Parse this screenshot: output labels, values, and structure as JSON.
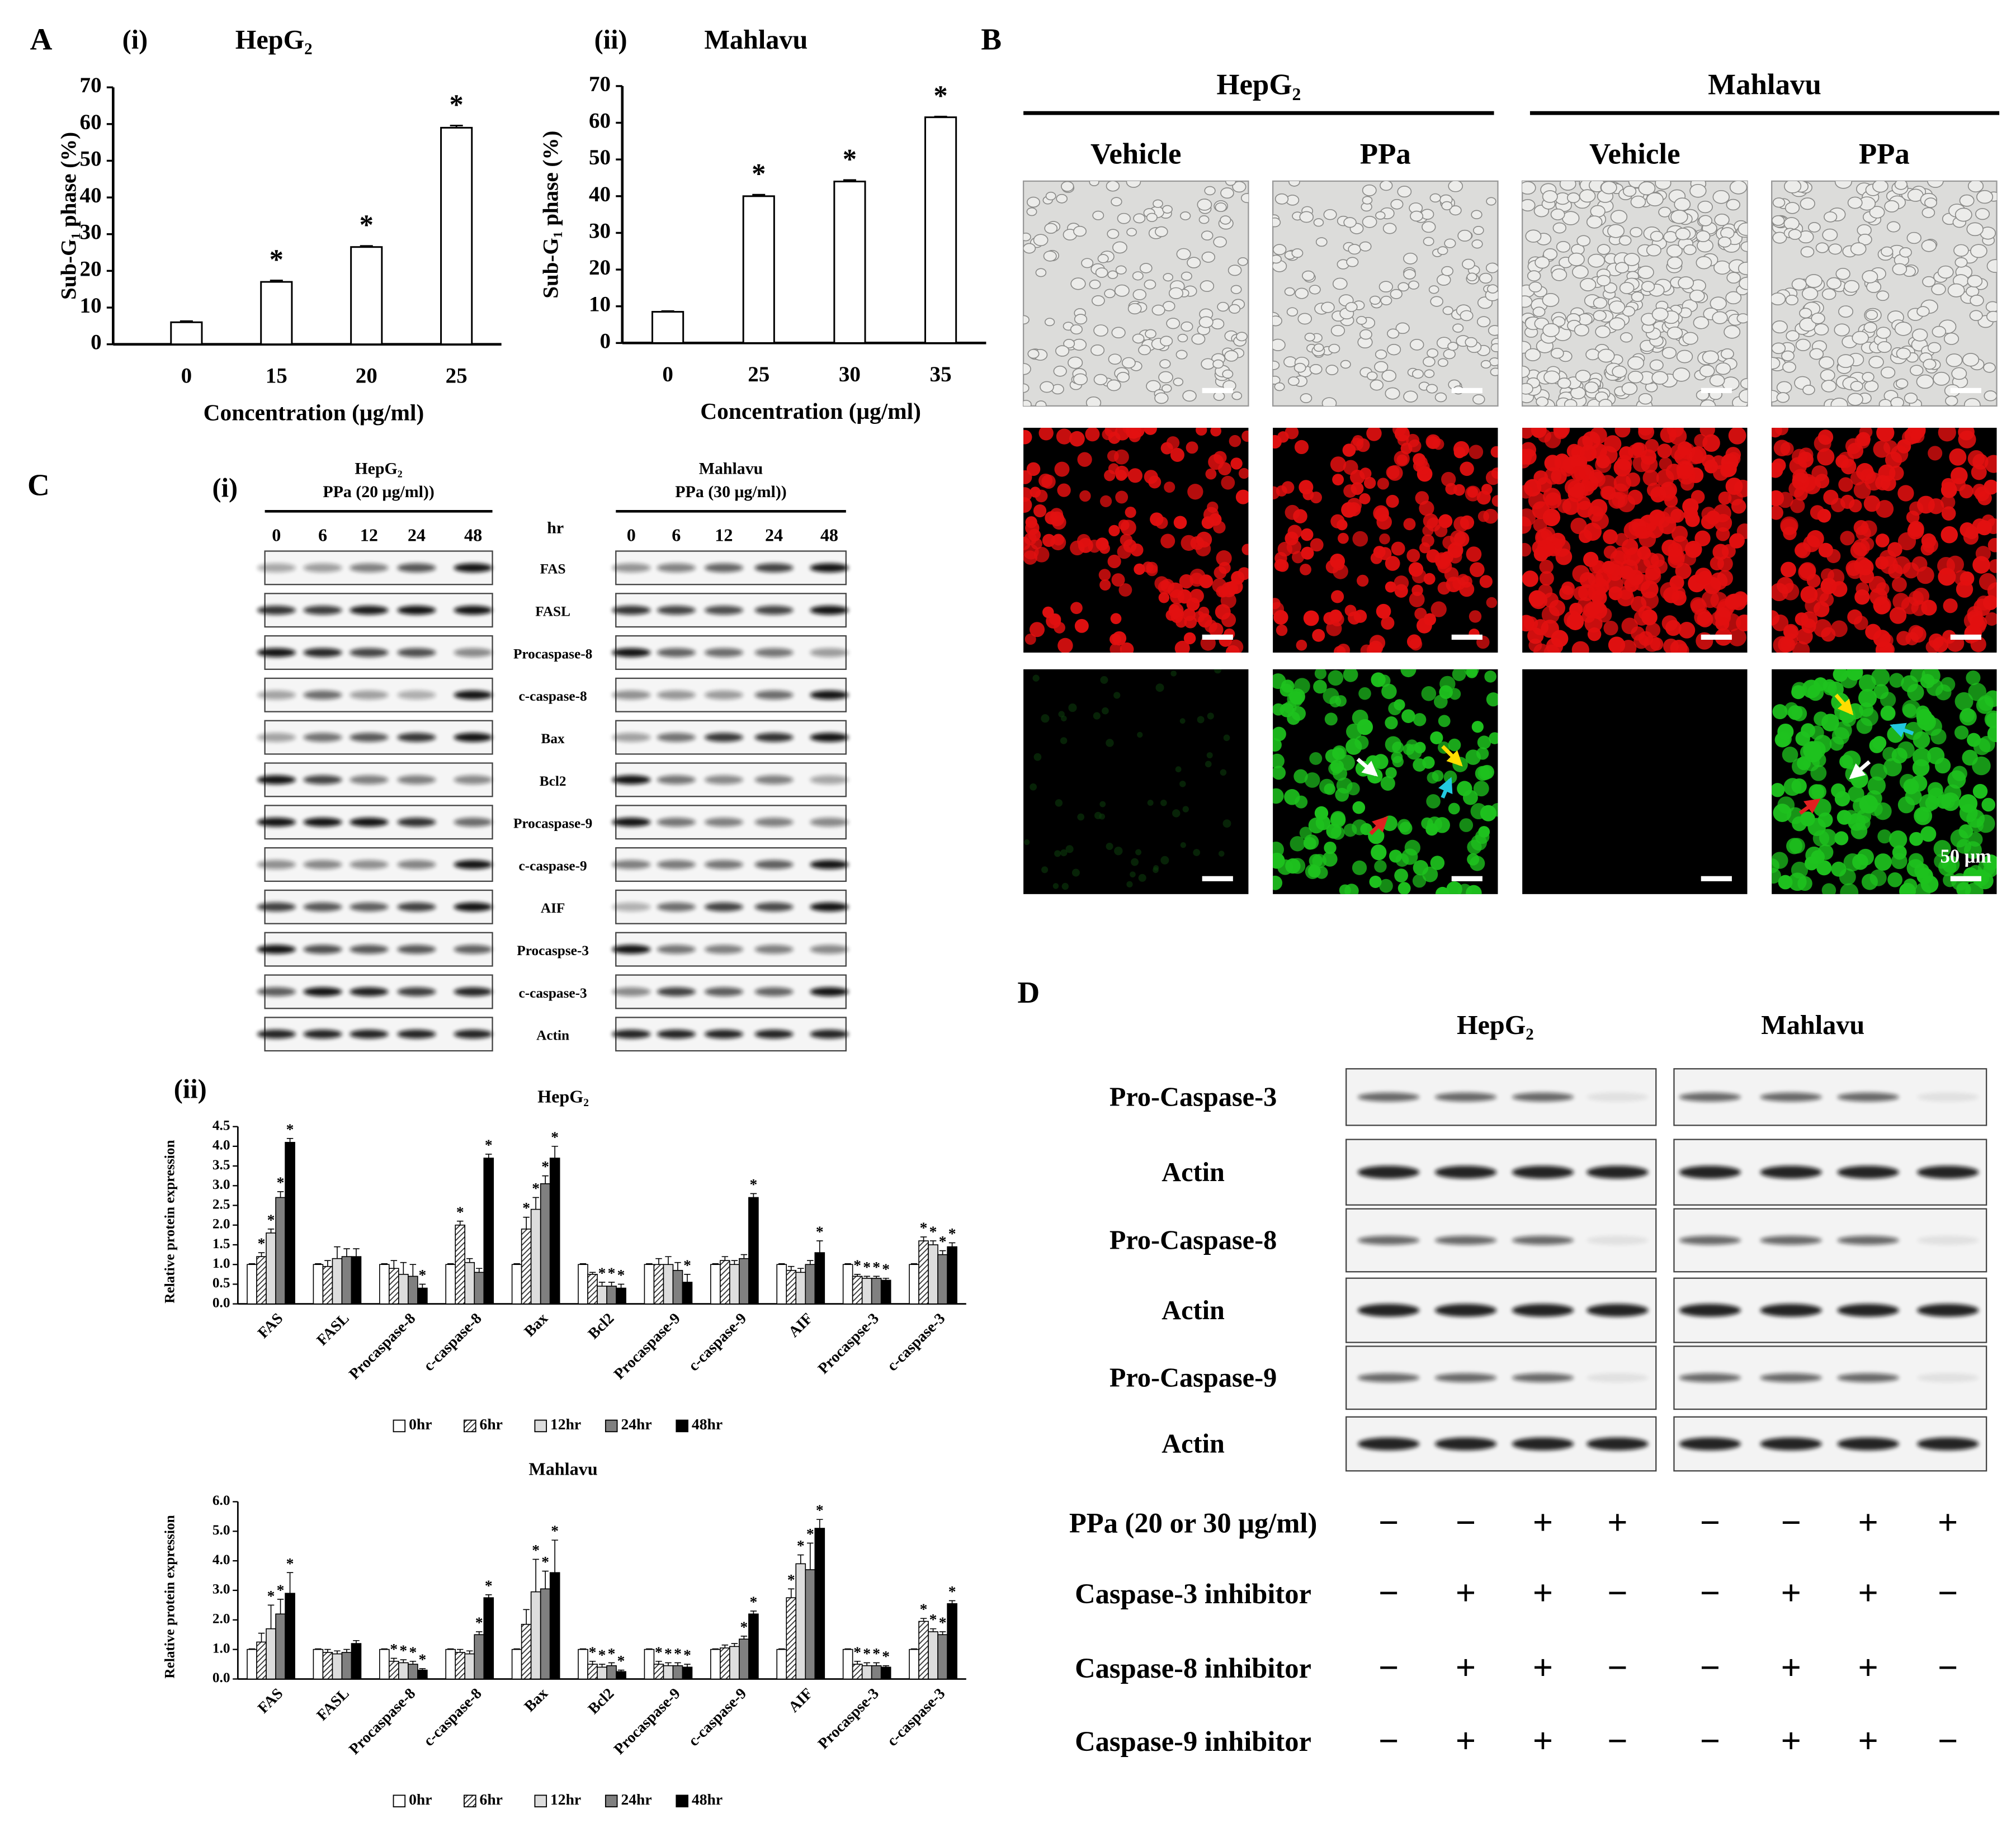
{
  "chart_data": [
    {
      "type": "bar",
      "panel": "A",
      "label": "(i)",
      "title": "HepG₂",
      "categories": [
        "0",
        "15",
        "20",
        "25"
      ],
      "values": [
        6,
        17,
        26.5,
        59
      ],
      "errors": [
        0.3,
        0.4,
        0.3,
        0.6
      ],
      "stars": [
        null,
        "*",
        "*",
        "*"
      ],
      "color": "#ffffff",
      "xlabel": "Concentration (μg/ml)",
      "ylabel": "Sub-G₁ phase (%)",
      "ylim": [
        0,
        70
      ],
      "yticks": [
        0,
        10,
        20,
        30,
        40,
        50,
        60,
        70
      ]
    },
    {
      "type": "bar",
      "label": "(ii)",
      "title": "Mahlavu",
      "categories": [
        "0",
        "25",
        "30",
        "35"
      ],
      "values": [
        8.5,
        40,
        44,
        61.5
      ],
      "errors": [
        0.2,
        0.4,
        0.4,
        0.2
      ],
      "stars": [
        null,
        "*",
        "*",
        "*"
      ],
      "color": "#ffffff",
      "xlabel": "Concentration (μg/ml)",
      "ylabel": "Sub-G₁ phase (%)",
      "ylim": [
        0,
        70
      ],
      "yticks": [
        0,
        10,
        20,
        30,
        40,
        50,
        60,
        70
      ]
    },
    {
      "type": "grouped_bar",
      "label": "(ii)",
      "title": "HepG₂",
      "ylabel": "Relative protein expression",
      "categories": [
        "FAS",
        "FASL",
        "Procaspase-8",
        "c-caspase-8",
        "Bax",
        "Bcl2",
        "Procaspase-9",
        "c-caspase-9",
        "AIF",
        "Procaspse-3",
        "c-caspase-3"
      ],
      "ylim": [
        0,
        4.5
      ],
      "yticks": [
        {
          "value": 0,
          "label": "0.0"
        },
        0.5,
        {
          "value": 1,
          "label": "1.0"
        },
        1.5,
        {
          "value": 2,
          "label": "2.0"
        },
        2.5,
        {
          "value": 3,
          "label": "3.0"
        },
        3.5,
        {
          "value": 4,
          "label": "4.0"
        },
        4.5
      ],
      "series": [
        {
          "name": "0hr",
          "color": "#ffffff",
          "values": [
            1,
            1,
            1,
            1,
            1,
            1,
            1,
            1,
            1,
            1,
            1
          ],
          "errors": [
            0.02,
            0.02,
            0.02,
            0.02,
            0.02,
            0.02,
            0.02,
            0.02,
            0.02,
            0.02,
            0.02
          ]
        },
        {
          "name": "6hr",
          "color": "#777777",
          "pattern": "hatch",
          "values": [
            1.2,
            0.95,
            0.9,
            2.0,
            1.9,
            0.75,
            1.0,
            1.1,
            0.85,
            0.7,
            1.6
          ],
          "errors": [
            0.1,
            0.15,
            0.2,
            0.1,
            0.3,
            0.05,
            0.15,
            0.1,
            0.1,
            0.05,
            0.1
          ],
          "stars": [
            "*",
            null,
            null,
            "*",
            "*",
            null,
            null,
            null,
            null,
            "*",
            "*"
          ]
        },
        {
          "name": "12hr",
          "color": "#dddddd",
          "values": [
            1.8,
            1.15,
            0.75,
            1.05,
            2.4,
            0.45,
            1.0,
            1.0,
            0.8,
            0.65,
            1.5
          ],
          "errors": [
            0.1,
            0.3,
            0.3,
            0.1,
            0.3,
            0.1,
            0.2,
            0.1,
            0.1,
            0.05,
            0.1
          ],
          "stars": [
            "*",
            null,
            null,
            null,
            "*",
            "*",
            null,
            null,
            null,
            "*",
            "*"
          ]
        },
        {
          "name": "24hr",
          "color": "#808080",
          "values": [
            2.7,
            1.2,
            0.7,
            0.8,
            3.05,
            0.45,
            0.85,
            1.15,
            1.0,
            0.65,
            1.25
          ],
          "errors": [
            0.15,
            0.2,
            0.3,
            0.1,
            0.2,
            0.1,
            0.2,
            0.1,
            0.1,
            0.05,
            0.1
          ],
          "stars": [
            "*",
            null,
            null,
            null,
            "*",
            "*",
            null,
            null,
            null,
            "*",
            "*"
          ]
        },
        {
          "name": "48hr",
          "color": "#000000",
          "values": [
            4.1,
            1.2,
            0.4,
            3.7,
            3.7,
            0.4,
            0.55,
            2.7,
            1.3,
            0.6,
            1.45
          ],
          "errors": [
            0.1,
            0.2,
            0.1,
            0.1,
            0.3,
            0.1,
            0.2,
            0.1,
            0.3,
            0.05,
            0.1
          ],
          "stars": [
            "*",
            null,
            "*",
            "*",
            "*",
            "*",
            "*",
            "*",
            "*",
            "*",
            "*"
          ]
        }
      ]
    },
    {
      "type": "grouped_bar",
      "title": "Mahlavu",
      "ylabel": "Relative protein expression",
      "categories": [
        "FAS",
        "FASL",
        "Procaspase-8",
        "c-caspase-8",
        "Bax",
        "Bcl2",
        "Procaspase-9",
        "c-caspase-9",
        "AIF",
        "Procaspse-3",
        "c-caspase-3"
      ],
      "ylim": [
        0,
        6
      ],
      "yticks": [
        {
          "value": 0,
          "label": "0.0"
        },
        {
          "value": 1,
          "label": "1.0"
        },
        {
          "value": 2,
          "label": "2.0"
        },
        {
          "value": 3,
          "label": "3.0"
        },
        {
          "value": 4,
          "label": "4.0"
        },
        {
          "value": 5,
          "label": "5.0"
        },
        {
          "value": 6,
          "label": "6.0"
        }
      ],
      "series": [
        {
          "name": "0hr",
          "color": "#ffffff",
          "values": [
            1,
            1,
            1,
            1,
            1,
            1,
            1,
            1,
            1,
            1,
            1
          ],
          "errors": [
            0.02,
            0.02,
            0.02,
            0.02,
            0.02,
            0.02,
            0.02,
            0.02,
            0.02,
            0.02,
            0.02
          ]
        },
        {
          "name": "6hr",
          "color": "#777777",
          "pattern": "hatch",
          "values": [
            1.25,
            0.9,
            0.6,
            0.9,
            1.85,
            0.5,
            0.5,
            1.05,
            2.75,
            0.5,
            1.95
          ],
          "errors": [
            0.3,
            0.1,
            0.1,
            0.1,
            0.5,
            0.1,
            0.1,
            0.1,
            0.3,
            0.1,
            0.1
          ],
          "stars": [
            null,
            null,
            "*",
            null,
            null,
            "*",
            "*",
            null,
            "*",
            "*",
            "*"
          ]
        },
        {
          "name": "12hr",
          "color": "#dddddd",
          "values": [
            1.7,
            0.85,
            0.55,
            0.85,
            2.95,
            0.4,
            0.45,
            1.1,
            3.9,
            0.45,
            1.6
          ],
          "errors": [
            0.8,
            0.1,
            0.1,
            0.1,
            1.1,
            0.1,
            0.1,
            0.1,
            0.3,
            0.1,
            0.1
          ],
          "stars": [
            "*",
            null,
            "*",
            null,
            "*",
            "*",
            "*",
            null,
            "*",
            "*",
            "*"
          ]
        },
        {
          "name": "24hr",
          "color": "#808080",
          "values": [
            2.2,
            0.9,
            0.5,
            1.5,
            3.05,
            0.45,
            0.45,
            1.35,
            3.7,
            0.45,
            1.5
          ],
          "errors": [
            0.5,
            0.1,
            0.1,
            0.1,
            0.6,
            0.1,
            0.1,
            0.1,
            0.9,
            0.1,
            0.1
          ],
          "stars": [
            "*",
            null,
            "*",
            "*",
            "*",
            "*",
            "*",
            "*",
            "*",
            "*",
            "*"
          ]
        },
        {
          "name": "48hr",
          "color": "#000000",
          "values": [
            2.9,
            1.2,
            0.3,
            2.75,
            3.6,
            0.25,
            0.4,
            2.2,
            5.1,
            0.4,
            2.55
          ],
          "errors": [
            0.7,
            0.1,
            0.05,
            0.1,
            1.1,
            0.05,
            0.1,
            0.1,
            0.3,
            0.05,
            0.1
          ],
          "stars": [
            "*",
            null,
            "*",
            "*",
            "*",
            "*",
            "*",
            "*",
            "*",
            "*",
            "*"
          ]
        }
      ]
    }
  ],
  "panel_b": {
    "label": "B",
    "scale_bar": "50 μm",
    "groups": [
      {
        "name": "HepG₂",
        "conditions": [
          "Vehicle",
          "PPa"
        ]
      },
      {
        "name": "Mahlavu",
        "conditions": [
          "Vehicle",
          "PPa"
        ]
      }
    ]
  },
  "panel_c": {
    "label": "C",
    "sublabel": "(i)",
    "time_unit": "hr",
    "times": [
      "0",
      "6",
      "12",
      "24",
      "48"
    ],
    "proteins": [
      "FAS",
      "FASL",
      "Procaspase-8",
      "c-caspase-8",
      "Bax",
      "Bcl2",
      "Procaspase-9",
      "c-caspase-9",
      "AIF",
      "Procaspse-3",
      "c-caspase-3",
      "Actin"
    ],
    "blots": [
      {
        "cell": "HepG₂",
        "treatment": "PPa (20 μg/ml))"
      },
      {
        "cell": "Mahlavu",
        "treatment": "PPa (30 μg/ml))"
      }
    ]
  },
  "panel_d": {
    "label": "D",
    "cells": [
      "HepG₂",
      "Mahlavu"
    ],
    "rows": [
      "Pro-Caspase-3",
      "Actin",
      "Pro-Caspase-8",
      "Actin",
      "Pro-Caspase-9",
      "Actin"
    ],
    "treatments": [
      {
        "name": "PPa (20 or 30 μg/ml)",
        "signs": [
          "−",
          "−",
          "+",
          "+",
          "−",
          "−",
          "+",
          "+"
        ]
      },
      {
        "name": "Caspase-3 inhibitor",
        "signs": [
          "−",
          "+",
          "+",
          "−",
          "−",
          "+",
          "+",
          "−"
        ]
      },
      {
        "name": "Caspase-8 inhibitor",
        "signs": [
          "−",
          "+",
          "+",
          "−",
          "−",
          "+",
          "+",
          "−"
        ]
      },
      {
        "name": "Caspase-9 inhibitor",
        "signs": [
          "−",
          "+",
          "+",
          "−",
          "−",
          "+",
          "+",
          "−"
        ]
      }
    ]
  }
}
